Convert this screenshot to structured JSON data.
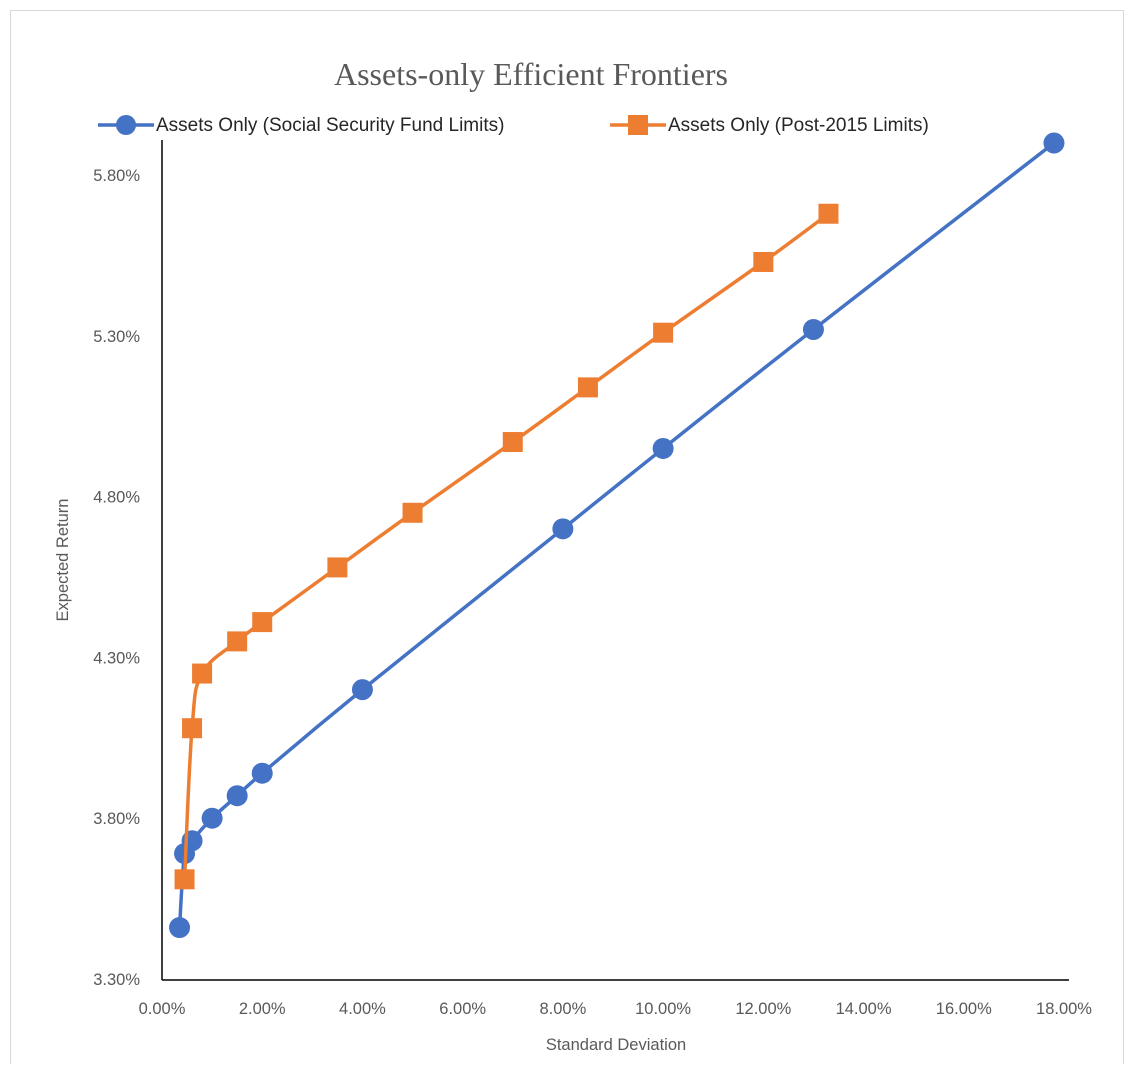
{
  "chart_data": {
    "type": "scatter",
    "title": "Assets-only Efficient Frontiers",
    "xlabel": "Standard Deviation",
    "ylabel": "Expected Return",
    "xlim": [
      0.0,
      18.0
    ],
    "ylim": [
      3.3,
      5.9
    ],
    "x_ticks": [
      0,
      2,
      4,
      6,
      8,
      10,
      12,
      14,
      16,
      18
    ],
    "y_ticks": [
      3.3,
      3.8,
      4.3,
      4.8,
      5.3,
      5.8
    ],
    "x_tick_labels": [
      "0.00%",
      "2.00%",
      "4.00%",
      "6.00%",
      "8.00%",
      "10.00%",
      "12.00%",
      "14.00%",
      "16.00%",
      "18.00%"
    ],
    "y_tick_labels": [
      "3.30%",
      "3.80%",
      "4.30%",
      "4.80%",
      "5.30%",
      "5.80%"
    ],
    "legend_position": "top",
    "grid": false,
    "smooth_lines": true,
    "series": [
      {
        "name": "Assets Only (Social Security Fund Limits)",
        "color": "#4472c4",
        "marker": "circle",
        "x": [
          0.35,
          0.45,
          0.6,
          1.0,
          1.5,
          2.0,
          4.0,
          8.0,
          10.0,
          13.0,
          17.8
        ],
        "y": [
          3.46,
          3.69,
          3.73,
          3.8,
          3.87,
          3.94,
          4.2,
          4.7,
          4.95,
          5.32,
          5.9
        ]
      },
      {
        "name": "Assets Only (Post-2015 Limits)",
        "color": "#ed7d31",
        "marker": "square",
        "x": [
          0.45,
          0.6,
          0.8,
          1.5,
          2.0,
          3.5,
          5.0,
          7.0,
          8.5,
          10.0,
          12.0,
          13.3
        ],
        "y": [
          3.61,
          4.08,
          4.25,
          4.35,
          4.41,
          4.58,
          4.75,
          4.97,
          5.14,
          5.31,
          5.53,
          5.68
        ]
      }
    ]
  }
}
